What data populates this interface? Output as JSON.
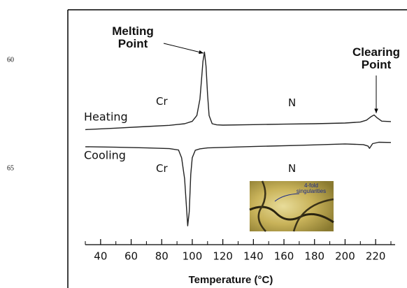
{
  "margin_line_numbers": [
    60,
    65
  ],
  "chart_data": {
    "type": "line",
    "xlabel": "Temperature (°C)",
    "xlim": [
      30,
      230
    ],
    "xticks": [
      40,
      60,
      80,
      100,
      120,
      140,
      160,
      180,
      200,
      220
    ],
    "xminor_ticks": [
      30,
      50,
      70,
      90,
      110,
      130,
      150,
      170,
      190,
      210,
      230
    ],
    "ylim": [
      0,
      100
    ],
    "series": [
      {
        "name": "Heating",
        "color": "#222222",
        "x": [
          30,
          50,
          70,
          85,
          95,
          100,
          103,
          105,
          106,
          107,
          108,
          109,
          110,
          111,
          113,
          116,
          120,
          140,
          160,
          180,
          200,
          210,
          214,
          217,
          219,
          221,
          224,
          230
        ],
        "values": [
          49,
          49.6,
          50.3,
          50.8,
          51.5,
          52.5,
          55,
          62,
          70,
          78,
          82,
          76,
          64,
          55,
          51.5,
          51,
          50.9,
          51.1,
          51.3,
          51.5,
          51.8,
          52.2,
          53,
          54.5,
          55.2,
          54,
          52.6,
          52.4
        ]
      },
      {
        "name": "Cooling",
        "color": "#222222",
        "x": [
          30,
          50,
          70,
          85,
          91,
          93,
          95,
          96,
          97,
          98,
          99,
          100,
          102,
          105,
          110,
          140,
          170,
          200,
          212,
          215,
          216,
          218,
          222,
          230
        ],
        "values": [
          41.7,
          41.5,
          41.2,
          40.9,
          40.3,
          37,
          28,
          18,
          8,
          14,
          30,
          37,
          40.2,
          40.8,
          41.2,
          41.8,
          42.3,
          42.9,
          42.6,
          42,
          41,
          43,
          43.6,
          43.5
        ]
      }
    ],
    "annotations": [
      "Melting Point",
      "Clearing Point",
      "Cr",
      "N",
      "Cr",
      "N",
      "4-fold singularities"
    ]
  }
}
